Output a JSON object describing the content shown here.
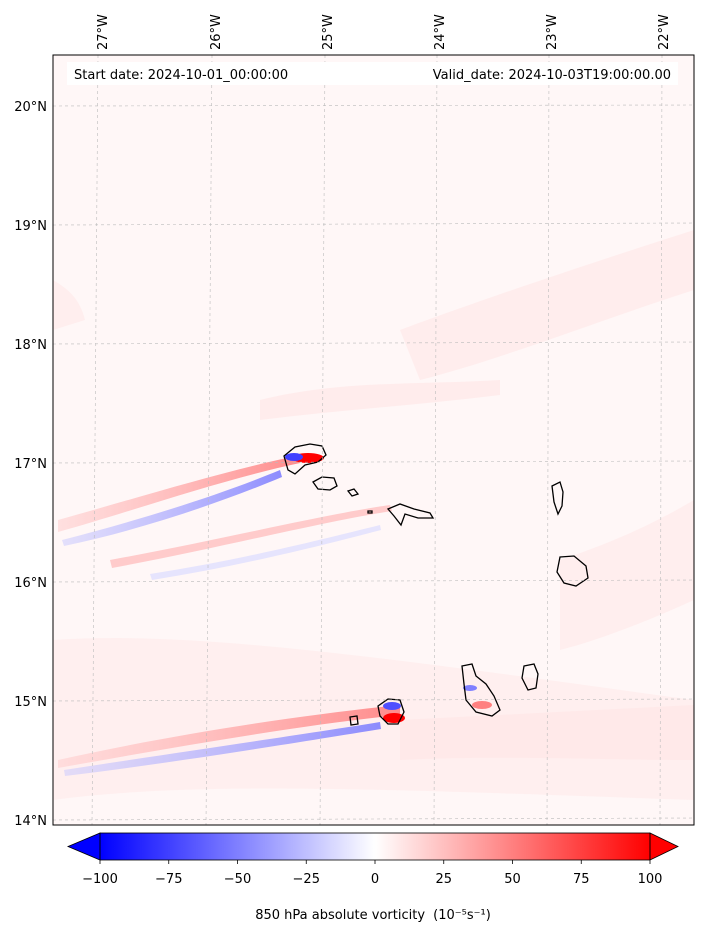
{
  "map": {
    "start_date": "Start date: 2024-10-01_00:00:00",
    "valid_date": "Valid_date: 2024-10-03T19:00:00.00",
    "lon_labels": [
      "27°W",
      "26°W",
      "25°W",
      "24°W",
      "23°W",
      "22°W"
    ],
    "lat_labels": [
      "20°N",
      "19°N",
      "18°N",
      "17°N",
      "16°N",
      "15°N",
      "14°N"
    ],
    "colorbar": {
      "ticks": [
        "−100",
        "−75",
        "−50",
        "−25",
        "0",
        "25",
        "50",
        "75",
        "100"
      ],
      "label": "850 hPa absolute vorticity",
      "units": "(10⁻⁵s⁻¹)"
    },
    "colors": {
      "neg": "#0000ff",
      "mid": "#ffffff",
      "pos": "#ff0000"
    }
  }
}
